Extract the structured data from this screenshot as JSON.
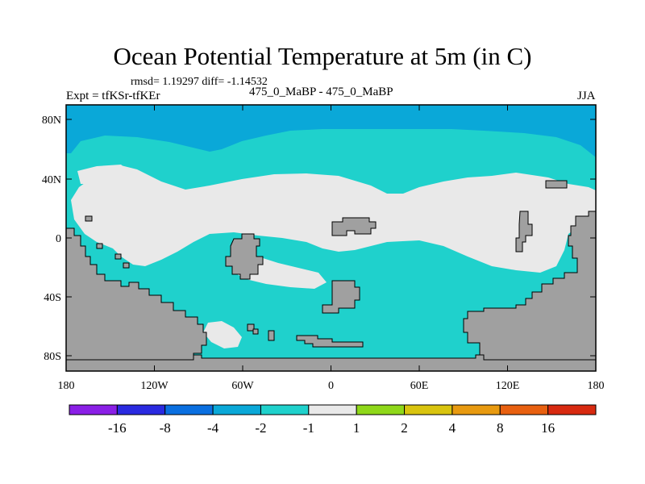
{
  "header": {
    "title": "Ocean Potential Temperature at 5m (in C)",
    "stats": "rmsd= 1.19297 diff= -1.14532",
    "expt": "Expt = tfKSr-tfKEr",
    "center_label": "475_0_MaBP - 475_0_MaBP",
    "season": "JJA"
  },
  "map": {
    "lat_ticks": [
      "80N",
      "40N",
      "0",
      "40S",
      "80S"
    ],
    "lon_ticks": [
      "180",
      "120W",
      "60W",
      "0",
      "60E",
      "120E",
      "180"
    ],
    "lon_range": [
      -180,
      180
    ],
    "lat_range": [
      -90,
      90
    ],
    "colors": {
      "land": "#a0a0a0",
      "ocean_-2_to_-1": "#1fd1cc",
      "ocean_-4_to_-2": "#0aa8d8",
      "ocean_-1_to_1": "#e9e9e9"
    }
  },
  "colorbar": {
    "labels": [
      "-16",
      "-8",
      "-4",
      "-2",
      "-1",
      "1",
      "2",
      "4",
      "8",
      "16"
    ],
    "colors": [
      "#8a1fe6",
      "#2a2ae0",
      "#0a6fe0",
      "#0aa8d8",
      "#1fd1cc",
      "#e9e9e9",
      "#8fd81a",
      "#d9c40f",
      "#e89a10",
      "#e86010",
      "#d82a10"
    ]
  }
}
